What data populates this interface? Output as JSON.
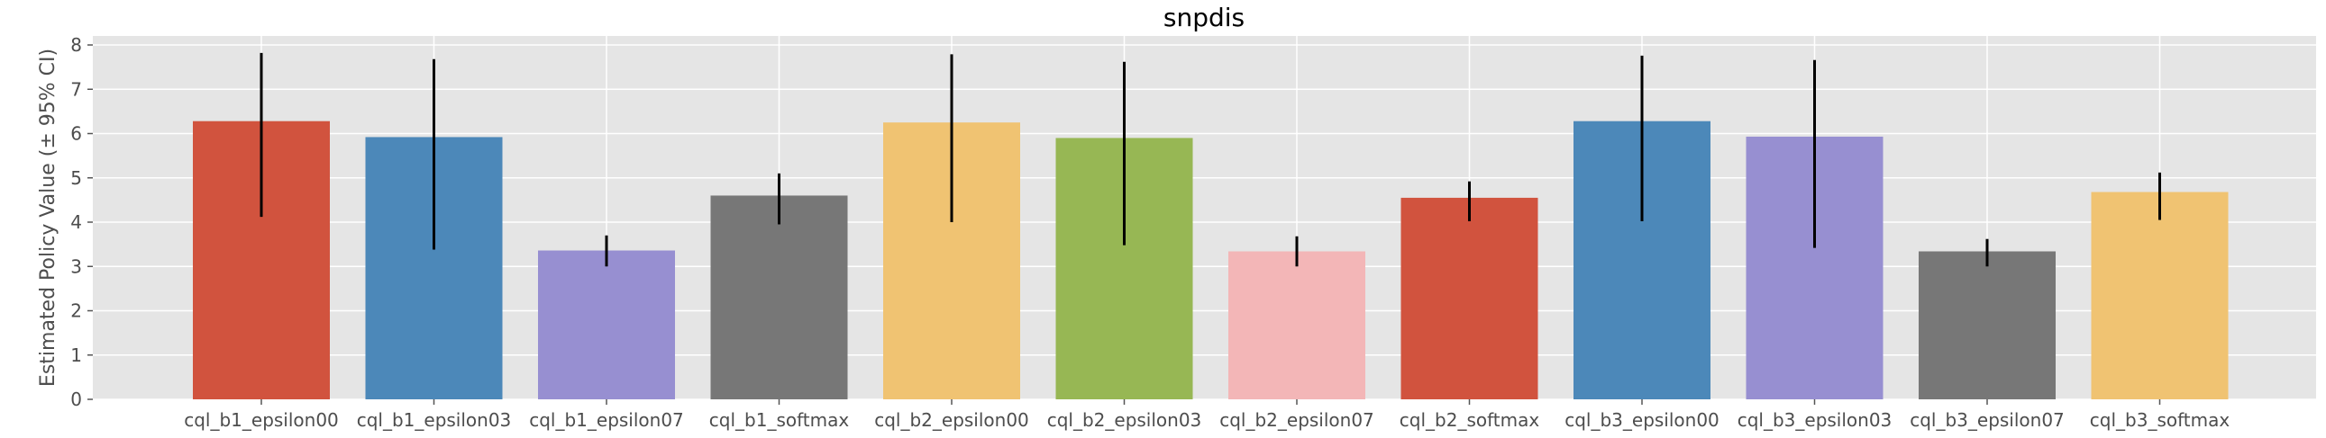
{
  "chart_data": {
    "type": "bar",
    "title": "snpdis",
    "xlabel": "",
    "ylabel": "Estimated Policy Value (± 95% CI)",
    "ylim": [
      0,
      8.2
    ],
    "yticks": [
      0,
      1,
      2,
      3,
      4,
      5,
      6,
      7,
      8
    ],
    "grid": true,
    "background": "#e5e5e5",
    "categories": [
      "cql_b1_epsilon00",
      "cql_b1_epsilon03",
      "cql_b1_epsilon07",
      "cql_b1_softmax",
      "cql_b2_epsilon00",
      "cql_b2_epsilon03",
      "cql_b2_epsilon07",
      "cql_b2_softmax",
      "cql_b3_epsilon00",
      "cql_b3_epsilon03",
      "cql_b3_epsilon07",
      "cql_b3_softmax"
    ],
    "values": [
      6.28,
      5.92,
      3.36,
      4.6,
      6.25,
      5.9,
      3.34,
      4.55,
      6.28,
      5.93,
      3.34,
      4.68
    ],
    "ci_low": [
      4.12,
      3.38,
      3.0,
      3.95,
      4.0,
      3.48,
      3.0,
      4.02,
      4.02,
      3.42,
      3.0,
      4.05
    ],
    "ci_high": [
      7.82,
      7.68,
      3.7,
      5.1,
      7.79,
      7.62,
      3.68,
      4.92,
      7.76,
      7.66,
      3.62,
      5.12
    ],
    "colors": [
      "#d1533e",
      "#4c88b9",
      "#978fd1",
      "#777777",
      "#f0c372",
      "#97b754",
      "#f3b6b7",
      "#d1533e",
      "#4c88b9",
      "#978fd1",
      "#777777",
      "#f0c372"
    ]
  }
}
